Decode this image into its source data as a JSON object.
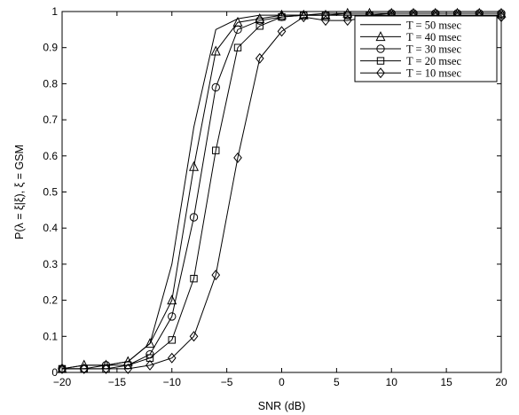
{
  "chart_data": {
    "type": "line",
    "xlabel": "SNR (dB)",
    "ylabel": "P(λ = ξ|ξ), ξ = GSM",
    "xlim": [
      -20,
      20
    ],
    "ylim": [
      0,
      1
    ],
    "xticks": [
      -20,
      -15,
      -10,
      -5,
      0,
      5,
      10,
      15,
      20
    ],
    "yticks": [
      0,
      0.1,
      0.2,
      0.3,
      0.4,
      0.5,
      0.6,
      0.7,
      0.8,
      0.9,
      1
    ],
    "legend_position": "top-right",
    "grid": false,
    "x": [
      -20,
      -18,
      -16,
      -14,
      -12,
      -10,
      -8,
      -6,
      -4,
      -2,
      0,
      2,
      4,
      6,
      8,
      10,
      12,
      14,
      16,
      18,
      20
    ],
    "series": [
      {
        "name": "T = 50 msec",
        "marker": "none",
        "values": [
          0.01,
          0.02,
          0.02,
          0.03,
          0.08,
          0.3,
          0.68,
          0.95,
          0.98,
          0.99,
          0.99,
          0.99,
          0.995,
          0.995,
          0.995,
          0.995,
          0.995,
          0.995,
          0.995,
          0.995,
          0.995
        ]
      },
      {
        "name": "T = 40 msec",
        "marker": "triangle",
        "values": [
          0.01,
          0.02,
          0.02,
          0.03,
          0.08,
          0.2,
          0.57,
          0.89,
          0.97,
          0.98,
          0.99,
          0.99,
          0.99,
          0.995,
          0.995,
          0.995,
          0.995,
          0.995,
          0.995,
          0.995,
          0.995
        ]
      },
      {
        "name": "T = 30 msec",
        "marker": "circle",
        "values": [
          0.01,
          0.01,
          0.02,
          0.02,
          0.05,
          0.155,
          0.43,
          0.79,
          0.95,
          0.975,
          0.985,
          0.99,
          0.99,
          0.99,
          0.99,
          0.995,
          0.995,
          0.995,
          0.995,
          0.995,
          0.995
        ]
      },
      {
        "name": "T = 20 msec",
        "marker": "square",
        "values": [
          0.01,
          0.01,
          0.01,
          0.02,
          0.04,
          0.09,
          0.26,
          0.615,
          0.9,
          0.96,
          0.985,
          0.99,
          0.99,
          0.99,
          0.99,
          0.99,
          0.99,
          0.99,
          0.99,
          0.99,
          0.99
        ]
      },
      {
        "name": "T = 10 msec",
        "marker": "diamond",
        "values": [
          0.01,
          0.01,
          0.01,
          0.01,
          0.02,
          0.04,
          0.1,
          0.27,
          0.595,
          0.87,
          0.945,
          0.985,
          0.975,
          0.975,
          0.985,
          0.985,
          0.985,
          0.985,
          0.985,
          0.985,
          0.985
        ]
      }
    ]
  }
}
